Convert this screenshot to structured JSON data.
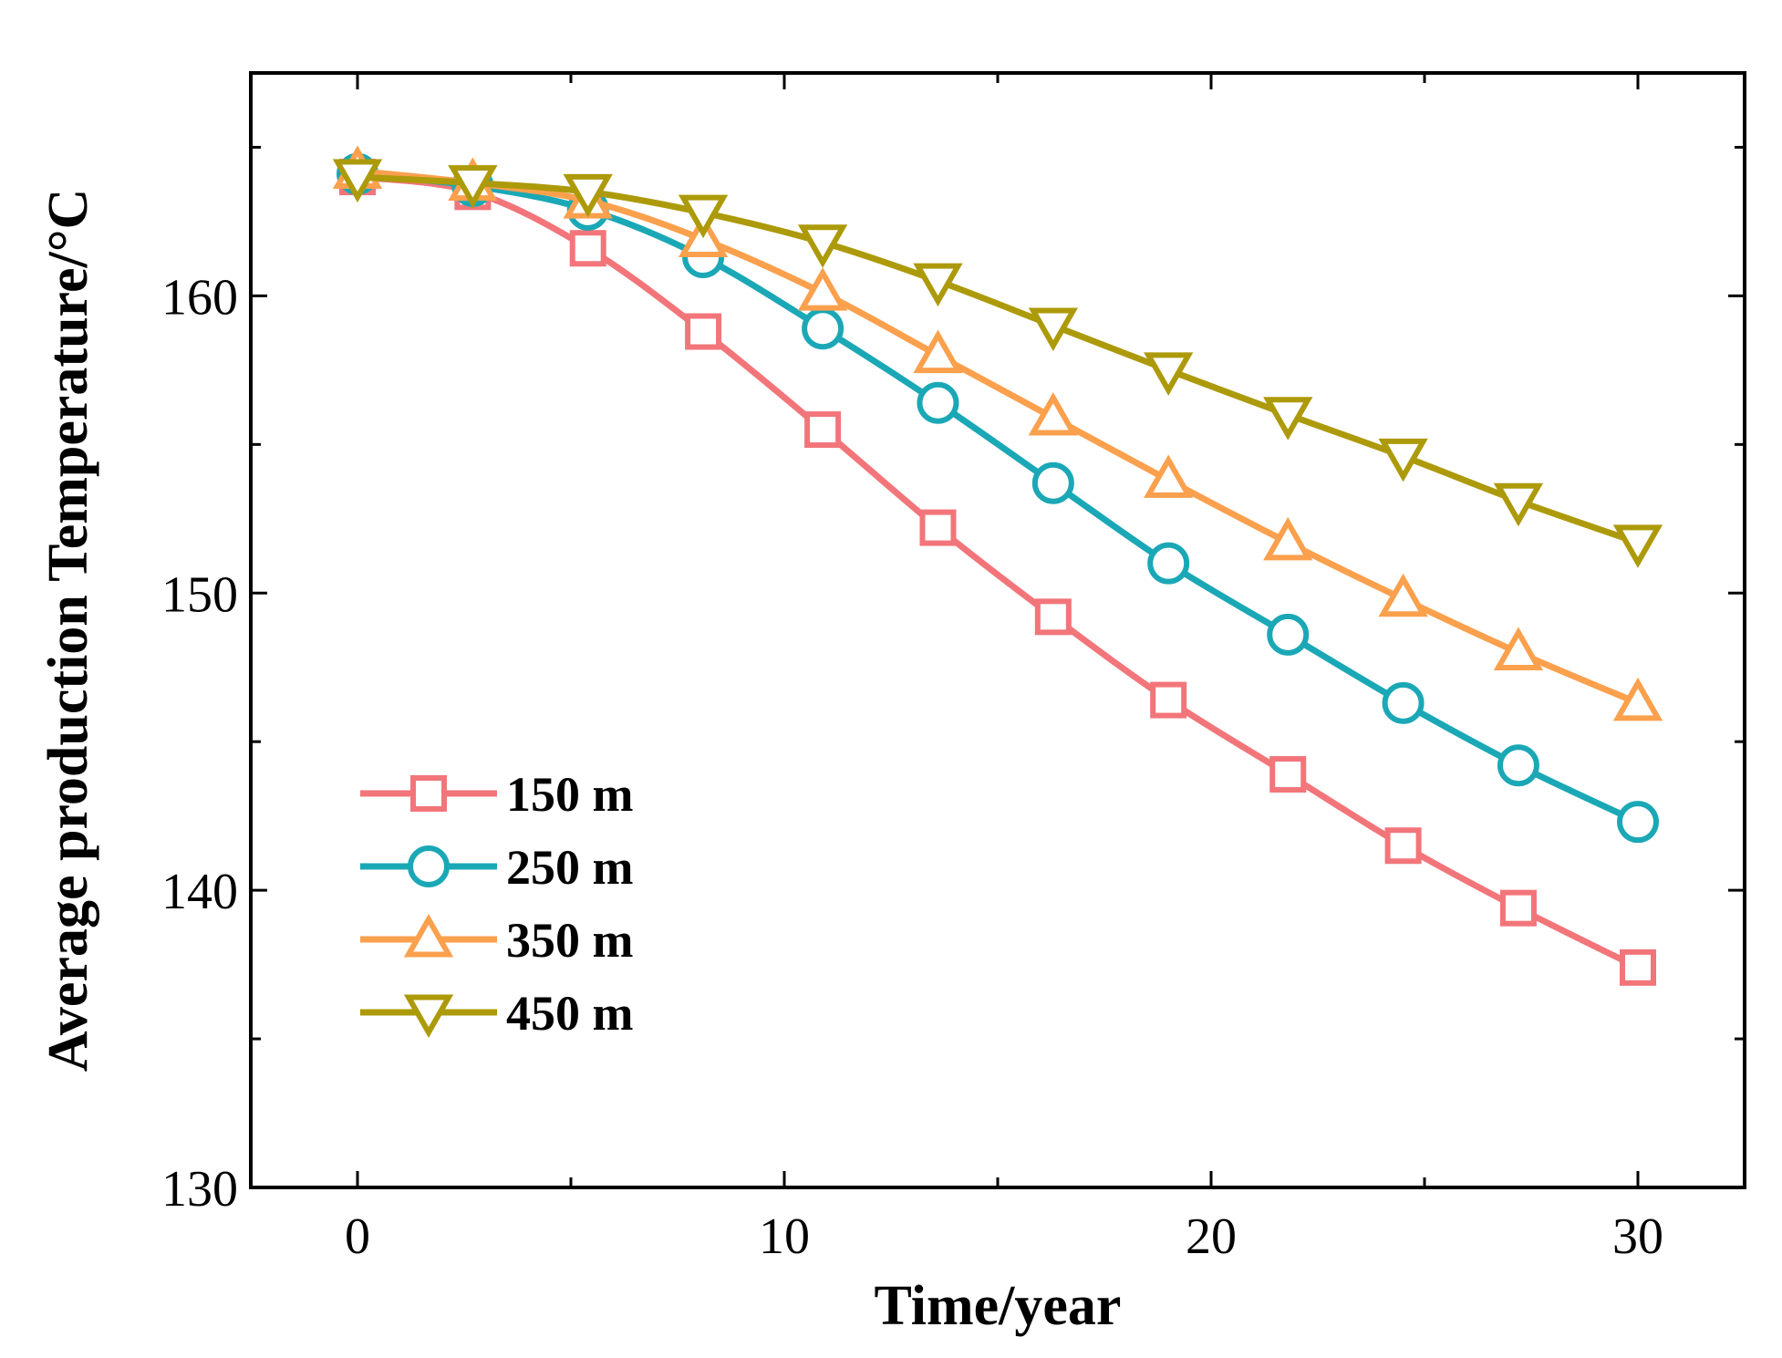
{
  "chart_data": {
    "type": "line",
    "xlabel": "Time/year",
    "ylabel": "Average production Temperature/°C",
    "xlim": [
      -2.5,
      32.5
    ],
    "ylim": [
      130,
      167.5
    ],
    "x_ticks": [
      0,
      10,
      20,
      30
    ],
    "x_minor_ticks": [
      5,
      15,
      25
    ],
    "y_ticks": [
      130,
      140,
      150,
      160
    ],
    "y_minor_ticks": [
      135,
      145,
      155,
      165
    ],
    "x_tick_labels": [
      "0",
      "10",
      "20",
      "30"
    ],
    "y_tick_labels": [
      "130",
      "140",
      "150",
      "160"
    ],
    "grid": false,
    "legend_position": "bottom-left",
    "x": [
      0,
      2.7,
      5.4,
      8.1,
      10.9,
      13.6,
      16.3,
      19.0,
      21.8,
      24.5,
      27.2,
      30.0
    ],
    "series": [
      {
        "name": "150 m",
        "color": "#F2757A",
        "marker": "square",
        "values": [
          164.0,
          163.5,
          161.6,
          158.8,
          155.5,
          152.2,
          149.2,
          146.4,
          143.9,
          141.5,
          139.4,
          137.4
        ]
      },
      {
        "name": "250 m",
        "color": "#1BA8B6",
        "marker": "circle",
        "values": [
          164.1,
          163.7,
          162.9,
          161.3,
          158.9,
          156.4,
          153.7,
          151.0,
          148.6,
          146.3,
          144.2,
          142.3
        ]
      },
      {
        "name": "350 m",
        "color": "#FBA04D",
        "marker": "triangle-up",
        "values": [
          164.2,
          163.8,
          163.2,
          161.9,
          160.1,
          158.0,
          155.9,
          153.8,
          151.7,
          149.8,
          148.0,
          146.3
        ]
      },
      {
        "name": "450 m",
        "color": "#AD9A0A",
        "marker": "triangle-down",
        "values": [
          164.0,
          163.8,
          163.5,
          162.8,
          161.8,
          160.5,
          159.0,
          157.5,
          156.0,
          154.6,
          153.1,
          151.7
        ]
      }
    ]
  }
}
